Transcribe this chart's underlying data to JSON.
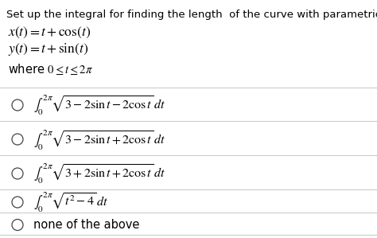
{
  "title": "Set up the integral for finding the length  of the curve with parametric equations",
  "eq1": "$x(t) = t + \\cos(t)$",
  "eq2": "$y(t) = t + \\sin(t)$",
  "where": "where $0 \\leq t \\leq 2\\pi$",
  "options": [
    "$\\int_0^{2\\pi} \\sqrt{3 - 2\\sin t - 2\\cos t}\\,dt$",
    "$\\int_0^{2\\pi} \\sqrt{3 - 2\\sin t + 2\\cos t}\\,dt$",
    "$\\int_0^{2\\pi} \\sqrt{3 + 2\\sin t + 2\\cos t}\\,dt$",
    "$\\int_0^{2\\pi} \\sqrt{t^2 - 4}\\,dt$",
    "none of the above"
  ],
  "bg_color": "#ffffff",
  "text_color": "#000000",
  "title_fontsize": 9.5,
  "eq_fontsize": 12.5,
  "where_fontsize": 10.5,
  "option_fontsize": 11.5,
  "none_fontsize": 10.5,
  "line_color": "#cccccc",
  "circle_color": "#444444"
}
